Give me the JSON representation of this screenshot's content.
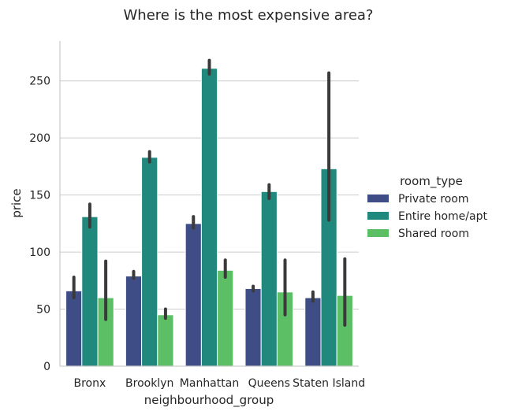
{
  "chart_data": {
    "type": "bar",
    "title": "Where is the most expensive area?",
    "xlabel": "neighbourhood_group",
    "ylabel": "price",
    "categories": [
      "Bronx",
      "Brooklyn",
      "Manhattan",
      "Queens",
      "Staten Island"
    ],
    "ylim": [
      0,
      285
    ],
    "yticks": [
      0,
      50,
      100,
      150,
      200,
      250
    ],
    "grid": "horizontal",
    "legend": {
      "title": "room_type",
      "placement": "right"
    },
    "series": [
      {
        "name": "Private room",
        "color": "#3e4d85",
        "values": [
          66,
          79,
          125,
          68,
          60
        ],
        "ci_low": [
          60,
          77,
          121,
          66,
          57
        ],
        "ci_high": [
          78,
          83,
          131,
          70,
          65
        ]
      },
      {
        "name": "Entire home/apt",
        "color": "#21887e",
        "values": [
          131,
          183,
          261,
          153,
          173
        ],
        "ci_low": [
          122,
          179,
          256,
          147,
          128
        ],
        "ci_high": [
          142,
          188,
          268,
          159,
          257
        ]
      },
      {
        "name": "Shared room",
        "color": "#5cbf65",
        "values": [
          60,
          45,
          84,
          65,
          62
        ],
        "ci_low": [
          41,
          42,
          78,
          45,
          36
        ],
        "ci_high": [
          92,
          50,
          93,
          93,
          94
        ]
      }
    ]
  }
}
